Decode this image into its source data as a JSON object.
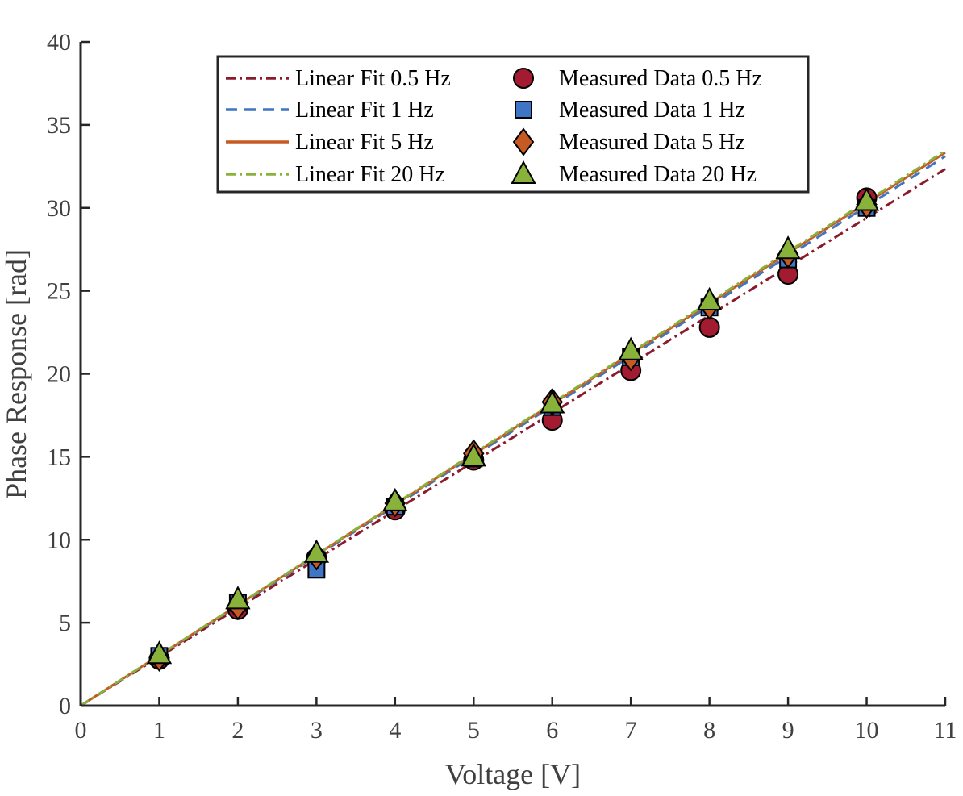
{
  "chart_data": {
    "type": "scatter",
    "xlabel": "Voltage [V]",
    "ylabel": "Phase Response [rad]",
    "xlim": [
      0,
      11
    ],
    "ylim": [
      0,
      40
    ],
    "xticks": [
      0,
      1,
      2,
      3,
      4,
      5,
      6,
      7,
      8,
      9,
      10,
      11
    ],
    "yticks": [
      0,
      5,
      10,
      15,
      20,
      25,
      30,
      35,
      40
    ],
    "grid": false,
    "legend_position": "top-center",
    "fits": [
      {
        "name": "Linear Fit 0.5 Hz",
        "slope": 2.94,
        "intercept": 0,
        "color": "#8B1A2B",
        "dash": "12,5,3,5"
      },
      {
        "name": "Linear Fit 1 Hz",
        "slope": 3.01,
        "intercept": 0,
        "color": "#3E75C4",
        "dash": "14,9"
      },
      {
        "name": "Linear Fit 5 Hz",
        "slope": 3.03,
        "intercept": 0,
        "color": "#C65A25",
        "dash": ""
      },
      {
        "name": "Linear Fit 20 Hz",
        "slope": 3.04,
        "intercept": 0,
        "color": "#88B23A",
        "dash": "12,5,3,5"
      }
    ],
    "series": [
      {
        "name": "Measured Data 0.5 Hz",
        "marker": "circle",
        "color": "#A31B30",
        "x": [
          1,
          2,
          3,
          4,
          5,
          6,
          7,
          8,
          9,
          10
        ],
        "y": [
          2.8,
          5.8,
          8.9,
          11.8,
          14.8,
          17.2,
          20.2,
          22.8,
          26.0,
          30.6
        ]
      },
      {
        "name": "Measured Data 1 Hz",
        "marker": "square",
        "color": "#3E75C4",
        "x": [
          1,
          2,
          3,
          4,
          5,
          6,
          7,
          8,
          9,
          10
        ],
        "y": [
          3.0,
          6.2,
          8.2,
          12.0,
          14.9,
          18.0,
          21.0,
          24.0,
          26.9,
          30.0
        ]
      },
      {
        "name": "Measured Data 5 Hz",
        "marker": "diamond",
        "color": "#C65A25",
        "x": [
          1,
          2,
          3,
          4,
          5,
          6,
          7,
          8,
          9,
          10
        ],
        "y": [
          2.9,
          6.0,
          9.0,
          12.2,
          15.2,
          18.3,
          21.0,
          24.1,
          27.2,
          30.2
        ]
      },
      {
        "name": "Measured Data 20 Hz",
        "marker": "triangle",
        "color": "#88B23A",
        "x": [
          1,
          2,
          3,
          4,
          5,
          6,
          7,
          8,
          9,
          10
        ],
        "y": [
          3.1,
          6.4,
          9.2,
          12.3,
          15.0,
          18.2,
          21.4,
          24.4,
          27.5,
          30.4
        ]
      }
    ]
  }
}
